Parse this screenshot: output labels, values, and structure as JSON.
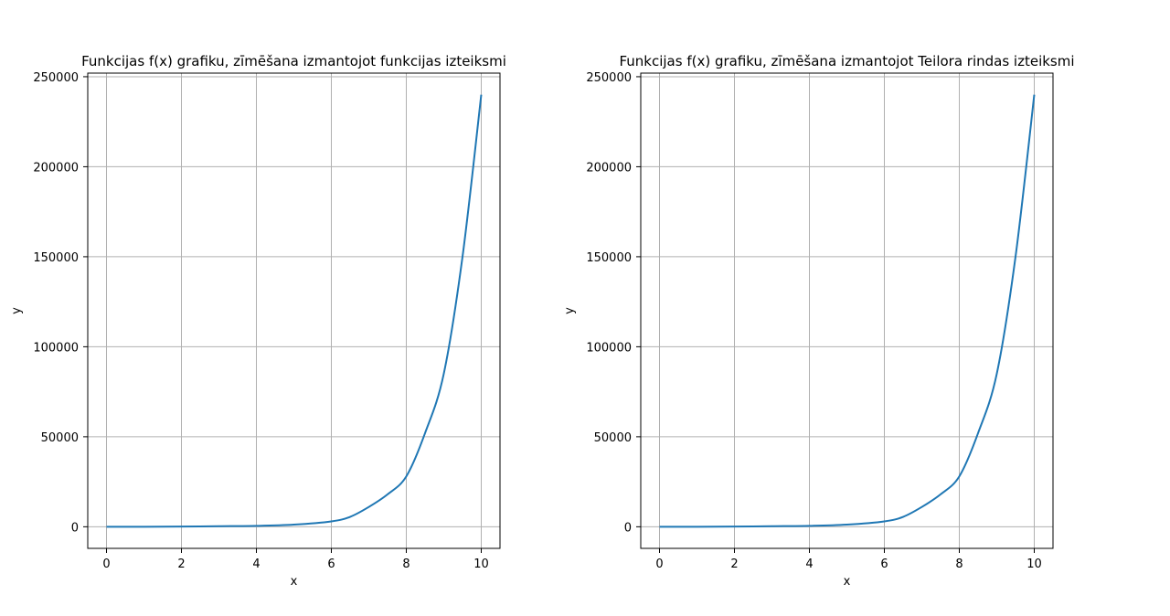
{
  "chart_data": [
    {
      "type": "line",
      "title": "Funkcijas f(x) grafiku, zīmēšana izmantojot funkcijas izteiksmi",
      "xlabel": "x",
      "ylabel": "y",
      "xlim": [
        -0.5,
        10.5
      ],
      "ylim": [
        -12000,
        252000
      ],
      "xticks": [
        0,
        2,
        4,
        6,
        8,
        10
      ],
      "yticks": [
        0,
        50000,
        100000,
        150000,
        200000,
        250000
      ],
      "grid": true,
      "series": [
        {
          "color": "#1f77b4",
          "x": [
            0,
            1,
            2,
            3,
            4,
            5,
            6,
            6.5,
            7,
            7.5,
            8,
            8.5,
            9,
            9.5,
            10
          ],
          "y": [
            0,
            15,
            120,
            300,
            500,
            1200,
            3000,
            5500,
            11000,
            18000,
            28000,
            52000,
            85000,
            150000,
            240000
          ]
        }
      ]
    },
    {
      "type": "line",
      "title": "Funkcijas f(x) grafiku, zīmēšana izmantojot Teilora rindas izteiksmi",
      "xlabel": "x",
      "ylabel": "y",
      "xlim": [
        -0.5,
        10.5
      ],
      "ylim": [
        -12000,
        252000
      ],
      "xticks": [
        0,
        2,
        4,
        6,
        8,
        10
      ],
      "yticks": [
        0,
        50000,
        100000,
        150000,
        200000,
        250000
      ],
      "grid": true,
      "series": [
        {
          "color": "#1f77b4",
          "x": [
            0,
            1,
            2,
            3,
            4,
            5,
            6,
            6.5,
            7,
            7.5,
            8,
            8.5,
            9,
            9.5,
            10
          ],
          "y": [
            0,
            15,
            120,
            300,
            500,
            1200,
            3000,
            5500,
            11000,
            18000,
            28000,
            52000,
            85000,
            150000,
            240000
          ]
        }
      ]
    }
  ]
}
